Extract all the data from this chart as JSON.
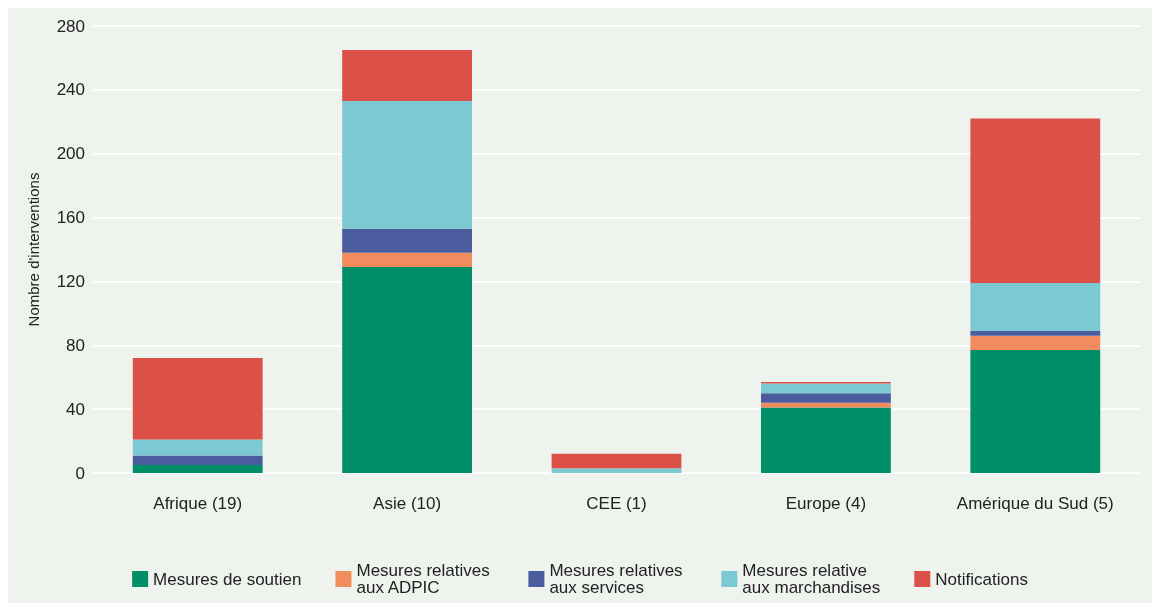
{
  "chart_data": {
    "type": "bar",
    "stacked": true,
    "ylabel": "Nombre d'interventions",
    "categories": [
      "Afrique (19)",
      "Asie (10)",
      "CEE (1)",
      "Europe (4)",
      "Amérique du Sud (5)"
    ],
    "series": [
      {
        "name": "Mesures de soutien",
        "color": "#008f68",
        "values": [
          5,
          129,
          0,
          41,
          77
        ]
      },
      {
        "name": "Mesures relatives aux ADPIC",
        "color": "#f28b5e",
        "values": [
          0,
          9,
          0,
          3,
          9
        ]
      },
      {
        "name": "Mesures relatives aux services",
        "color": "#4b5c9e",
        "values": [
          6,
          15,
          0,
          6,
          3
        ]
      },
      {
        "name": "Mesures relative aux marchandises",
        "color": "#7cc8d3",
        "values": [
          10,
          80,
          3,
          6,
          30
        ]
      },
      {
        "name": "Notifications",
        "color": "#dc5147",
        "values": [
          51,
          32,
          9,
          1,
          103
        ]
      }
    ],
    "ylim": [
      0,
      280
    ],
    "yticks": [
      0,
      40,
      80,
      120,
      160,
      200,
      240,
      280
    ],
    "grid": "y",
    "legend": "bottom"
  }
}
